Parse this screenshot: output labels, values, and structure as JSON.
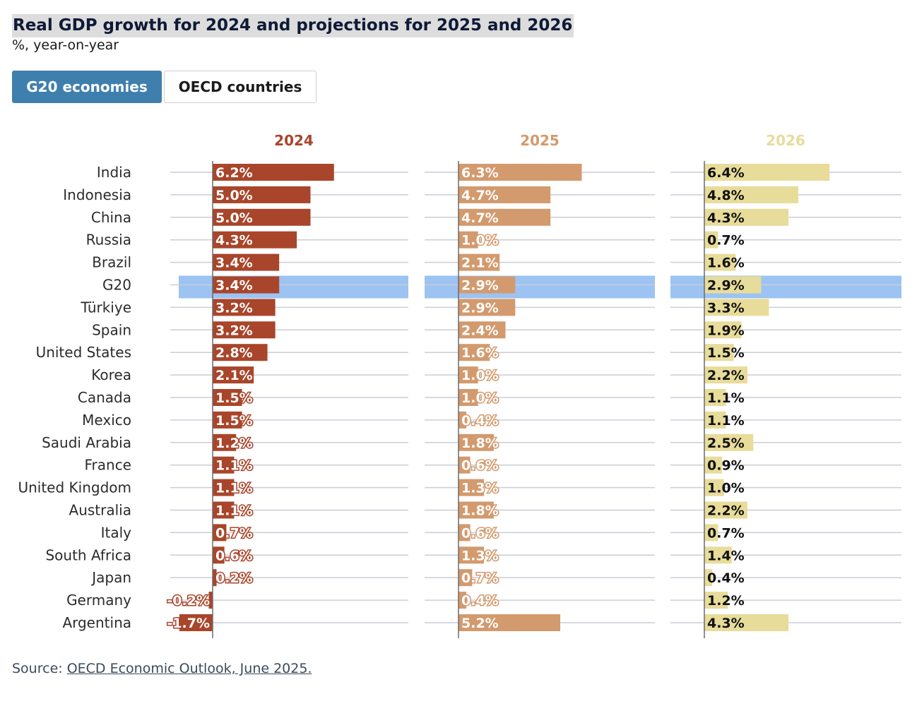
{
  "header": {
    "title": "Real GDP growth for 2024 and projections for 2025 and 2026",
    "subtitle": "%, year-on-year"
  },
  "tabs": [
    {
      "label": "G20 economies",
      "active": true
    },
    {
      "label": "OECD countries",
      "active": false
    }
  ],
  "footer": {
    "source_prefix": "Source: ",
    "source_link": "OECD Economic Outlook, June 2025."
  },
  "chart_data": {
    "type": "bar",
    "orientation": "horizontal",
    "highlight_category": "G20",
    "categories": [
      "India",
      "Indonesia",
      "China",
      "Russia",
      "Brazil",
      "G20",
      "Türkiye",
      "Spain",
      "United States",
      "Korea",
      "Canada",
      "Mexico",
      "Saudi Arabia",
      "France",
      "United Kingdom",
      "Australia",
      "Italy",
      "South Africa",
      "Japan",
      "Germany",
      "Argentina"
    ],
    "series": [
      {
        "name": "2024",
        "color": "#a9452a",
        "values": [
          6.2,
          5.0,
          5.0,
          4.3,
          3.4,
          3.4,
          3.2,
          3.2,
          2.8,
          2.1,
          1.5,
          1.5,
          1.2,
          1.1,
          1.1,
          1.1,
          0.7,
          0.6,
          0.2,
          -0.2,
          -1.7
        ],
        "labels": [
          "6.2%",
          "5.0%",
          "5.0%",
          "4.3%",
          "3.4%",
          "3.4%",
          "3.2%",
          "3.2%",
          "2.8%",
          "2.1%",
          "1.5%",
          "1.5%",
          "1.2%",
          "1.1%",
          "1.1%",
          "1.1%",
          "0.7%",
          "0.6%",
          "0.2%",
          "-0.2%",
          "-1.7%"
        ]
      },
      {
        "name": "2025",
        "color": "#d39a6e",
        "values": [
          6.3,
          4.7,
          4.7,
          1.0,
          2.1,
          2.9,
          2.9,
          2.4,
          1.6,
          1.0,
          1.0,
          0.4,
          1.8,
          0.6,
          1.3,
          1.8,
          0.6,
          1.3,
          0.7,
          0.4,
          5.2
        ],
        "labels": [
          "6.3%",
          "4.7%",
          "4.7%",
          "1.0%",
          "2.1%",
          "2.9%",
          "2.9%",
          "2.4%",
          "1.6%",
          "1.0%",
          "1.0%",
          "0.4%",
          "1.8%",
          "0.6%",
          "1.3%",
          "1.8%",
          "0.6%",
          "1.3%",
          "0.7%",
          "0.4%",
          "5.2%"
        ]
      },
      {
        "name": "2026",
        "color": "#e8dc9a",
        "values": [
          6.4,
          4.8,
          4.3,
          0.7,
          1.6,
          2.9,
          3.3,
          1.9,
          1.5,
          2.2,
          1.1,
          1.1,
          2.5,
          0.9,
          1.0,
          2.2,
          0.7,
          1.4,
          0.4,
          1.2,
          4.3
        ],
        "labels": [
          "6.4%",
          "4.8%",
          "4.3%",
          "0.7%",
          "1.6%",
          "2.9%",
          "3.3%",
          "1.9%",
          "1.5%",
          "2.2%",
          "1.1%",
          "1.1%",
          "2.5%",
          "0.9%",
          "1.0%",
          "2.2%",
          "0.7%",
          "1.4%",
          "0.4%",
          "1.2%",
          "4.3%"
        ]
      }
    ],
    "colors": {
      "grid_line": "#c9ced6",
      "highlight_band": "#9cc3f2",
      "axis_line": "#6b6b6b",
      "label_light": "#ffffff",
      "label_dark": "#111111",
      "label_outline": "#a9452a",
      "title_2024": "#a9452a",
      "title_2025": "#d39a6e",
      "title_2026": "#e8dc9a"
    }
  }
}
